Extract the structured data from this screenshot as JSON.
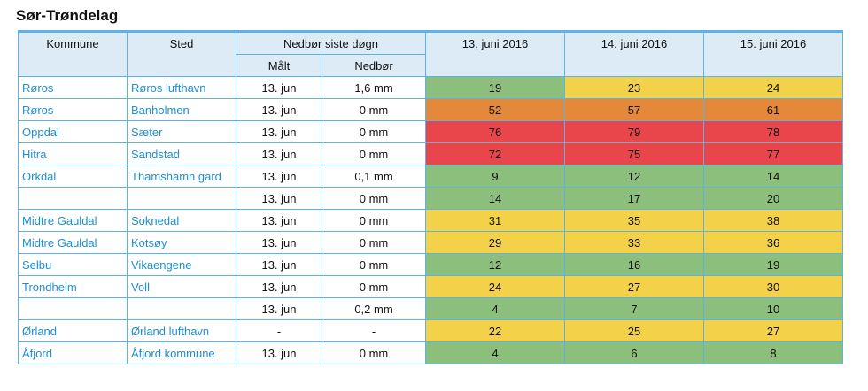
{
  "title": "Sør-Trøndelag",
  "headers": {
    "kommune": "Kommune",
    "sted": "Sted",
    "nedbor_group": "Nedbør siste døgn",
    "malt": "Målt",
    "nedbor": "Nedbør",
    "dates": [
      "13. juni 2016",
      "14. juni 2016",
      "15. juni 2016"
    ]
  },
  "level_colors": {
    "green": "#8cbe7c",
    "yellow": "#f3d24a",
    "orange": "#e4893a",
    "red": "#e8464a"
  },
  "rows": [
    {
      "kommune": "Røros",
      "sted": "Røros lufthavn",
      "malt": "13. jun",
      "nedbor": "1,6 mm",
      "values": [
        "19",
        "23",
        "24"
      ],
      "colors": [
        "green",
        "yellow",
        "yellow"
      ]
    },
    {
      "kommune": "Røros",
      "sted": "Banholmen",
      "malt": "13. jun",
      "nedbor": "0 mm",
      "values": [
        "52",
        "57",
        "61"
      ],
      "colors": [
        "orange",
        "orange",
        "orange"
      ]
    },
    {
      "kommune": "Oppdal",
      "sted": "Sæter",
      "malt": "13. jun",
      "nedbor": "0 mm",
      "values": [
        "76",
        "79",
        "78"
      ],
      "colors": [
        "red",
        "red",
        "red"
      ]
    },
    {
      "kommune": "Hitra",
      "sted": "Sandstad",
      "malt": "13. jun",
      "nedbor": "0 mm",
      "values": [
        "72",
        "75",
        "77"
      ],
      "colors": [
        "red",
        "red",
        "red"
      ]
    },
    {
      "kommune": "Orkdal",
      "sted": "Thamshamn gard",
      "malt": "13. jun",
      "nedbor": "0,1 mm",
      "values": [
        "9",
        "12",
        "14"
      ],
      "colors": [
        "green",
        "green",
        "green"
      ]
    },
    {
      "kommune": "",
      "sted": "",
      "malt": "13. jun",
      "nedbor": "0 mm",
      "values": [
        "14",
        "17",
        "20"
      ],
      "colors": [
        "green",
        "green",
        "green"
      ]
    },
    {
      "kommune": "Midtre Gauldal",
      "sted": "Soknedal",
      "malt": "13. jun",
      "nedbor": "0 mm",
      "values": [
        "31",
        "35",
        "38"
      ],
      "colors": [
        "yellow",
        "yellow",
        "yellow"
      ]
    },
    {
      "kommune": "Midtre Gauldal",
      "sted": "Kotsøy",
      "malt": "13. jun",
      "nedbor": "0 mm",
      "values": [
        "29",
        "33",
        "36"
      ],
      "colors": [
        "yellow",
        "yellow",
        "yellow"
      ]
    },
    {
      "kommune": "Selbu",
      "sted": "Vikaengene",
      "malt": "13. jun",
      "nedbor": "0 mm",
      "values": [
        "12",
        "16",
        "19"
      ],
      "colors": [
        "green",
        "green",
        "green"
      ]
    },
    {
      "kommune": "Trondheim",
      "sted": "Voll",
      "malt": "13. jun",
      "nedbor": "0 mm",
      "values": [
        "24",
        "27",
        "30"
      ],
      "colors": [
        "yellow",
        "yellow",
        "yellow"
      ]
    },
    {
      "kommune": "",
      "sted": "",
      "malt": "13. jun",
      "nedbor": "0,2 mm",
      "values": [
        "4",
        "7",
        "10"
      ],
      "colors": [
        "green",
        "green",
        "green"
      ]
    },
    {
      "kommune": "Ørland",
      "sted": "Ørland lufthavn",
      "malt": "-",
      "nedbor": "-",
      "values": [
        "22",
        "25",
        "27"
      ],
      "colors": [
        "yellow",
        "yellow",
        "yellow"
      ]
    },
    {
      "kommune": "Åfjord",
      "sted": "Åfjord kommune",
      "malt": "13. jun",
      "nedbor": "0 mm",
      "values": [
        "4",
        "6",
        "8"
      ],
      "colors": [
        "green",
        "green",
        "green"
      ]
    }
  ]
}
